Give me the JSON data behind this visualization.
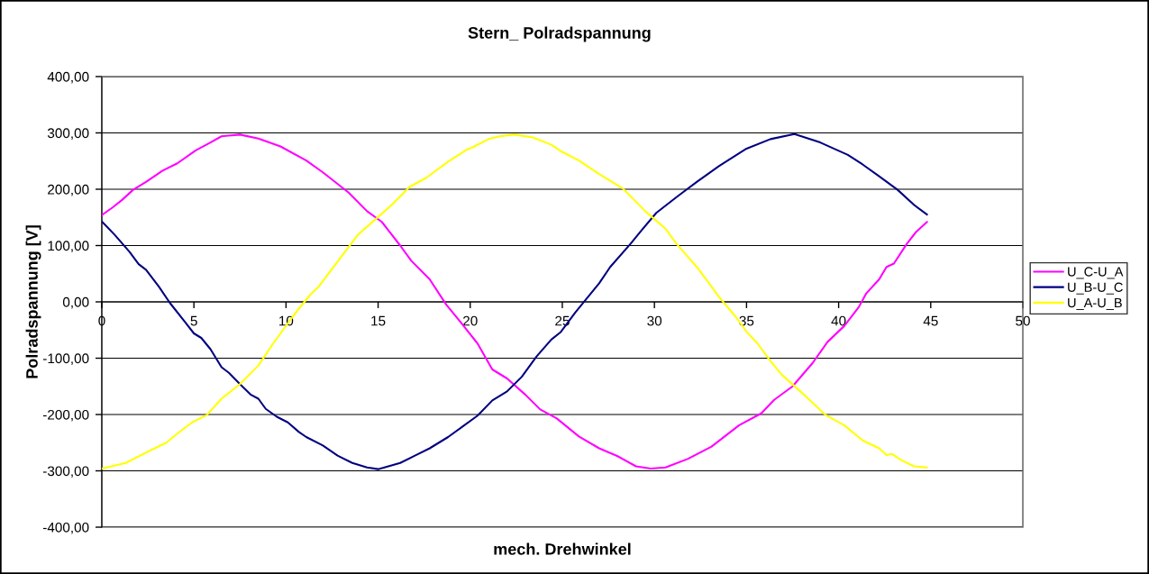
{
  "chart_data": {
    "type": "line",
    "title": "Stern_ Polradspannung",
    "xlabel": "mech. Drehwinkel",
    "ylabel": "Polradspannung [V]",
    "xlim": [
      0,
      50
    ],
    "xticks": [
      0,
      5,
      10,
      15,
      20,
      25,
      30,
      35,
      40,
      45,
      50
    ],
    "ylim": [
      -400,
      400
    ],
    "yticks": [
      {
        "value": -400,
        "label": "-400,00"
      },
      {
        "value": -300,
        "label": "-300,00"
      },
      {
        "value": -200,
        "label": "-200,00"
      },
      {
        "value": -100,
        "label": "-100,00"
      },
      {
        "value": 0,
        "label": "0,00"
      },
      {
        "value": 100,
        "label": "100,00"
      },
      {
        "value": 200,
        "label": "200,00"
      },
      {
        "value": 300,
        "label": "300,00"
      },
      {
        "value": 400,
        "label": "400,00"
      }
    ],
    "grid": "y",
    "legend": "right",
    "marker": "none",
    "line_style": "solid",
    "series": [
      {
        "name": "U_C-U_A",
        "color": "#ff00ff",
        "x": [
          0,
          0.6,
          1.1,
          1.7,
          2.4,
          3.3,
          4.1,
          5.1,
          5.9,
          6.5,
          7.5,
          8.5,
          9.7,
          11.1,
          12.0,
          13.4,
          14.4,
          15.2,
          16.2,
          16.8,
          17.8,
          18.7,
          19.6,
          20.4,
          21.2,
          22.0,
          23.0,
          23.8,
          24.7,
          25.9,
          27.0,
          28.0,
          29.0,
          29.8,
          30.6,
          31.8,
          33.1,
          34.6,
          35.8,
          36.5,
          37.5,
          38.6,
          39.4,
          40.3,
          41.1,
          41.5,
          42.2,
          42.6,
          43.0,
          43.7,
          44.2,
          44.8
        ],
        "values": [
          154,
          168,
          181,
          199,
          213,
          233,
          246,
          269,
          283,
          294,
          297,
          290,
          276,
          251,
          230,
          194,
          161,
          142,
          100,
          73,
          40,
          -5,
          -41,
          -74,
          -120,
          -136,
          -165,
          -191,
          -207,
          -239,
          -260,
          -274,
          -292,
          -296,
          -294,
          -279,
          -257,
          -219,
          -198,
          -174,
          -150,
          -108,
          -71,
          -43,
          -9,
          15,
          40,
          62,
          68,
          103,
          124,
          142
        ]
      },
      {
        "name": "U_B-U_C",
        "color": "#000080",
        "x": [
          0,
          0.7,
          1.5,
          2.0,
          2.4,
          3.1,
          3.7,
          4.5,
          5.0,
          5.4,
          5.9,
          6.5,
          6.9,
          7.5,
          8.1,
          8.5,
          8.9,
          9.5,
          10.1,
          10.7,
          11.1,
          12.0,
          12.8,
          13.6,
          14.4,
          15.0,
          16.2,
          17.0,
          17.8,
          18.8,
          19.6,
          20.4,
          21.2,
          22.0,
          22.8,
          23.6,
          24.4,
          24.9,
          25.7,
          26.4,
          27.0,
          27.6,
          28.7,
          29.3,
          30.1,
          31.2,
          32.3,
          33.5,
          35.0,
          36.3,
          37.6,
          39.0,
          40.5,
          41.3,
          42.2,
          43.2,
          44.1,
          44.8
        ],
        "values": [
          143,
          119,
          89,
          67,
          57,
          27,
          -2,
          -35,
          -56,
          -64,
          -84,
          -116,
          -126,
          -146,
          -165,
          -172,
          -190,
          -204,
          -214,
          -231,
          -240,
          -255,
          -273,
          -286,
          -294,
          -297,
          -286,
          -273,
          -260,
          -240,
          -221,
          -202,
          -175,
          -159,
          -133,
          -97,
          -67,
          -54,
          -19,
          9,
          33,
          62,
          103,
          127,
          158,
          186,
          213,
          241,
          272,
          289,
          298,
          283,
          261,
          244,
          223,
          199,
          172,
          155
        ]
      },
      {
        "name": "U_A-U_B",
        "color": "#ffff00",
        "x": [
          0,
          1.3,
          2.5,
          3.5,
          4.1,
          4.9,
          5.7,
          6.5,
          7.5,
          8.5,
          9.3,
          10.1,
          10.7,
          11.3,
          11.8,
          12.4,
          13.0,
          13.9,
          14.8,
          15.8,
          16.7,
          17.6,
          18.8,
          19.8,
          20.1,
          21.0,
          21.6,
          22.4,
          23.4,
          24.4,
          24.9,
          25.9,
          27.0,
          28.3,
          29.5,
          30.6,
          31.2,
          32.3,
          33.1,
          33.5,
          34.4,
          35.0,
          35.6,
          36.3,
          36.9,
          38.2,
          39.3,
          40.3,
          41.3,
          42.2,
          42.6,
          42.9,
          43.4,
          44.1,
          44.8
        ],
        "values": [
          -296,
          -286,
          -266,
          -250,
          -234,
          -214,
          -201,
          -172,
          -146,
          -113,
          -74,
          -38,
          -12,
          12,
          28,
          54,
          80,
          119,
          145,
          174,
          204,
          220,
          249,
          270,
          274,
          289,
          294,
          297,
          292,
          279,
          268,
          251,
          227,
          201,
          161,
          130,
          103,
          62,
          27,
          9,
          -26,
          -53,
          -74,
          -105,
          -129,
          -167,
          -201,
          -219,
          -246,
          -260,
          -272,
          -270,
          -281,
          -292,
          -294
        ]
      }
    ]
  }
}
